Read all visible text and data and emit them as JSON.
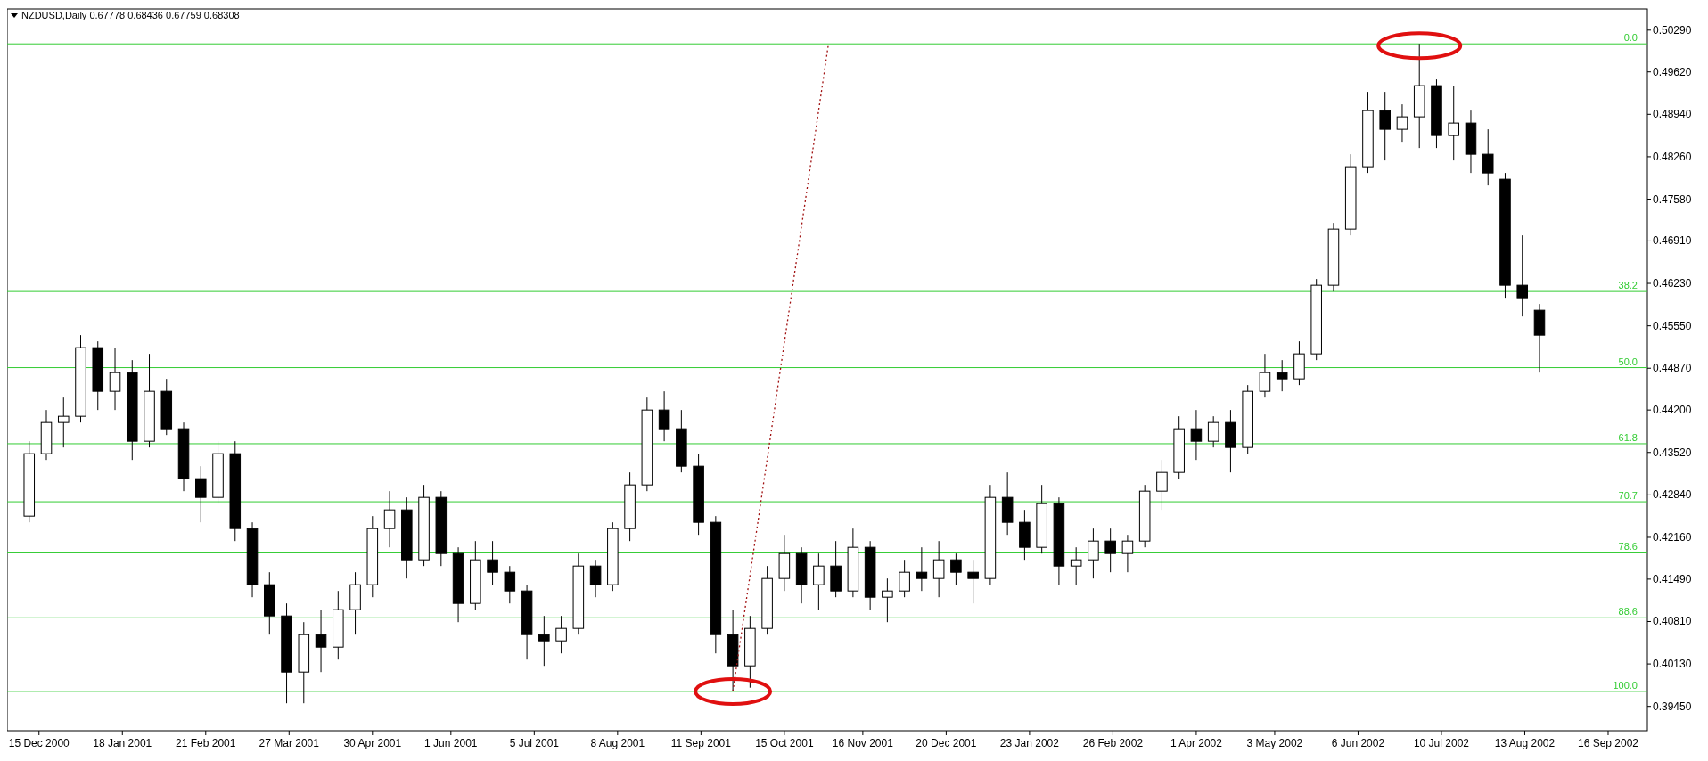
{
  "chart_data": {
    "type": "candlestick",
    "title": "NZDUSD,Daily 0.67778 0.68436 0.67759 0.68308",
    "x": [
      "2000-12-11",
      "2000-12-18",
      "2000-12-25",
      "2001-01-01",
      "2001-01-08",
      "2001-01-15",
      "2001-01-22",
      "2001-01-29",
      "2001-02-05",
      "2001-02-12",
      "2001-02-19",
      "2001-02-26",
      "2001-03-05",
      "2001-03-12",
      "2001-03-19",
      "2001-03-26",
      "2001-04-02",
      "2001-04-09",
      "2001-04-16",
      "2001-04-23",
      "2001-04-30",
      "2001-05-07",
      "2001-05-14",
      "2001-05-21",
      "2001-05-28",
      "2001-06-04",
      "2001-06-11",
      "2001-06-18",
      "2001-06-25",
      "2001-07-02",
      "2001-07-09",
      "2001-07-16",
      "2001-07-23",
      "2001-07-30",
      "2001-08-06",
      "2001-08-13",
      "2001-08-20",
      "2001-08-27",
      "2001-09-03",
      "2001-09-10",
      "2001-09-17",
      "2001-09-24",
      "2001-10-01",
      "2001-10-08",
      "2001-10-15",
      "2001-10-22",
      "2001-10-29",
      "2001-11-05",
      "2001-11-12",
      "2001-11-19",
      "2001-11-26",
      "2001-12-03",
      "2001-12-10",
      "2001-12-17",
      "2001-12-24",
      "2001-12-31",
      "2002-01-07",
      "2002-01-14",
      "2002-01-21",
      "2002-01-28",
      "2002-02-04",
      "2002-02-11",
      "2002-02-18",
      "2002-02-25",
      "2002-03-04",
      "2002-03-11",
      "2002-03-18",
      "2002-03-25",
      "2002-04-01",
      "2002-04-08",
      "2002-04-15",
      "2002-04-22",
      "2002-04-29",
      "2002-05-06",
      "2002-05-13",
      "2002-05-20",
      "2002-05-27",
      "2002-06-03",
      "2002-06-10",
      "2002-06-17",
      "2002-06-24",
      "2002-07-01",
      "2002-07-08",
      "2002-07-15",
      "2002-07-22",
      "2002-07-29",
      "2002-08-05",
      "2002-08-12",
      "2002-08-19"
    ],
    "ohlc": [
      [
        0.425,
        0.437,
        0.424,
        0.435
      ],
      [
        0.435,
        0.442,
        0.434,
        0.44
      ],
      [
        0.44,
        0.444,
        0.436,
        0.441
      ],
      [
        0.441,
        0.454,
        0.44,
        0.452
      ],
      [
        0.452,
        0.453,
        0.442,
        0.445
      ],
      [
        0.445,
        0.452,
        0.442,
        0.448
      ],
      [
        0.448,
        0.45,
        0.434,
        0.437
      ],
      [
        0.437,
        0.451,
        0.436,
        0.445
      ],
      [
        0.445,
        0.447,
        0.438,
        0.439
      ],
      [
        0.439,
        0.44,
        0.429,
        0.431
      ],
      [
        0.431,
        0.433,
        0.424,
        0.428
      ],
      [
        0.428,
        0.437,
        0.427,
        0.435
      ],
      [
        0.435,
        0.437,
        0.421,
        0.423
      ],
      [
        0.423,
        0.424,
        0.412,
        0.414
      ],
      [
        0.414,
        0.416,
        0.406,
        0.409
      ],
      [
        0.409,
        0.411,
        0.395,
        0.4
      ],
      [
        0.4,
        0.408,
        0.395,
        0.406
      ],
      [
        0.406,
        0.41,
        0.4,
        0.404
      ],
      [
        0.404,
        0.413,
        0.402,
        0.41
      ],
      [
        0.41,
        0.416,
        0.406,
        0.414
      ],
      [
        0.414,
        0.425,
        0.412,
        0.423
      ],
      [
        0.423,
        0.429,
        0.42,
        0.426
      ],
      [
        0.426,
        0.428,
        0.415,
        0.418
      ],
      [
        0.418,
        0.43,
        0.417,
        0.428
      ],
      [
        0.428,
        0.429,
        0.417,
        0.419
      ],
      [
        0.419,
        0.42,
        0.408,
        0.411
      ],
      [
        0.411,
        0.421,
        0.41,
        0.418
      ],
      [
        0.418,
        0.421,
        0.414,
        0.416
      ],
      [
        0.416,
        0.417,
        0.411,
        0.413
      ],
      [
        0.413,
        0.414,
        0.402,
        0.406
      ],
      [
        0.406,
        0.409,
        0.401,
        0.405
      ],
      [
        0.405,
        0.409,
        0.403,
        0.407
      ],
      [
        0.407,
        0.419,
        0.406,
        0.417
      ],
      [
        0.417,
        0.418,
        0.412,
        0.414
      ],
      [
        0.414,
        0.424,
        0.413,
        0.423
      ],
      [
        0.423,
        0.432,
        0.421,
        0.43
      ],
      [
        0.43,
        0.444,
        0.429,
        0.442
      ],
      [
        0.442,
        0.445,
        0.437,
        0.439
      ],
      [
        0.439,
        0.442,
        0.432,
        0.433
      ],
      [
        0.433,
        0.435,
        0.422,
        0.424
      ],
      [
        0.424,
        0.425,
        0.403,
        0.406
      ],
      [
        0.406,
        0.41,
        0.3969,
        0.401
      ],
      [
        0.401,
        0.409,
        0.3975,
        0.407
      ],
      [
        0.407,
        0.417,
        0.406,
        0.415
      ],
      [
        0.415,
        0.422,
        0.413,
        0.419
      ],
      [
        0.419,
        0.42,
        0.411,
        0.414
      ],
      [
        0.414,
        0.419,
        0.41,
        0.417
      ],
      [
        0.417,
        0.421,
        0.412,
        0.413
      ],
      [
        0.413,
        0.423,
        0.412,
        0.42
      ],
      [
        0.42,
        0.421,
        0.41,
        0.412
      ],
      [
        0.412,
        0.415,
        0.408,
        0.413
      ],
      [
        0.413,
        0.418,
        0.412,
        0.416
      ],
      [
        0.416,
        0.42,
        0.413,
        0.415
      ],
      [
        0.415,
        0.421,
        0.412,
        0.418
      ],
      [
        0.418,
        0.419,
        0.414,
        0.416
      ],
      [
        0.416,
        0.418,
        0.411,
        0.415
      ],
      [
        0.415,
        0.43,
        0.414,
        0.428
      ],
      [
        0.428,
        0.432,
        0.422,
        0.424
      ],
      [
        0.424,
        0.426,
        0.418,
        0.42
      ],
      [
        0.42,
        0.43,
        0.419,
        0.427
      ],
      [
        0.427,
        0.428,
        0.414,
        0.417
      ],
      [
        0.417,
        0.42,
        0.414,
        0.418
      ],
      [
        0.418,
        0.423,
        0.415,
        0.421
      ],
      [
        0.421,
        0.423,
        0.416,
        0.419
      ],
      [
        0.419,
        0.422,
        0.416,
        0.421
      ],
      [
        0.421,
        0.43,
        0.42,
        0.429
      ],
      [
        0.429,
        0.434,
        0.426,
        0.432
      ],
      [
        0.432,
        0.441,
        0.431,
        0.439
      ],
      [
        0.439,
        0.442,
        0.434,
        0.437
      ],
      [
        0.437,
        0.441,
        0.436,
        0.44
      ],
      [
        0.44,
        0.442,
        0.432,
        0.436
      ],
      [
        0.436,
        0.446,
        0.435,
        0.445
      ],
      [
        0.445,
        0.451,
        0.444,
        0.448
      ],
      [
        0.448,
        0.45,
        0.445,
        0.447
      ],
      [
        0.447,
        0.453,
        0.446,
        0.451
      ],
      [
        0.451,
        0.463,
        0.45,
        0.462
      ],
      [
        0.462,
        0.472,
        0.461,
        0.471
      ],
      [
        0.471,
        0.483,
        0.47,
        0.481
      ],
      [
        0.481,
        0.493,
        0.48,
        0.49
      ],
      [
        0.49,
        0.493,
        0.482,
        0.487
      ],
      [
        0.487,
        0.491,
        0.485,
        0.489
      ],
      [
        0.489,
        0.5007,
        0.484,
        0.494
      ],
      [
        0.494,
        0.495,
        0.484,
        0.486
      ],
      [
        0.486,
        0.494,
        0.482,
        0.488
      ],
      [
        0.488,
        0.49,
        0.48,
        0.483
      ],
      [
        0.483,
        0.487,
        0.478,
        0.48
      ],
      [
        0.479,
        0.48,
        0.46,
        0.462
      ],
      [
        0.462,
        0.47,
        0.457,
        0.46
      ],
      [
        0.458,
        0.459,
        0.448,
        0.454
      ]
    ],
    "series": [
      {
        "type": "line",
        "x": [
          "2001-09-24",
          "2001-11-02"
        ],
        "values": [
          0.3969,
          0.5007
        ],
        "color": "#a01010",
        "line_style": "dotted"
      }
    ],
    "xlim": [
      "2000-12-02",
      "2002-10-02"
    ],
    "xticks": [
      {
        "value": "2000-12-15",
        "label": "15 Dec 2000"
      },
      {
        "value": "2001-01-18",
        "label": "18 Jan 2001"
      },
      {
        "value": "2001-02-21",
        "label": "21 Feb 2001"
      },
      {
        "value": "2001-03-27",
        "label": "27 Mar 2001"
      },
      {
        "value": "2001-04-30",
        "label": "30 Apr 2001"
      },
      {
        "value": "2001-06-01",
        "label": "1 Jun 2001"
      },
      {
        "value": "2001-07-05",
        "label": "5 Jul 2001"
      },
      {
        "value": "2001-08-08",
        "label": "8 Aug 2001"
      },
      {
        "value": "2001-09-11",
        "label": "11 Sep 2001"
      },
      {
        "value": "2001-10-15",
        "label": "15 Oct 2001"
      },
      {
        "value": "2001-11-16",
        "label": "16 Nov 2001"
      },
      {
        "value": "2001-12-20",
        "label": "20 Dec 2001"
      },
      {
        "value": "2002-01-23",
        "label": "23 Jan 2002"
      },
      {
        "value": "2002-02-26",
        "label": "26 Feb 2002"
      },
      {
        "value": "2002-04-01",
        "label": "1 Apr 2002"
      },
      {
        "value": "2002-05-03",
        "label": "3 May 2002"
      },
      {
        "value": "2002-06-06",
        "label": "6 Jun 2002"
      },
      {
        "value": "2002-07-10",
        "label": "10 Jul 2002"
      },
      {
        "value": "2002-08-13",
        "label": "13 Aug 2002"
      },
      {
        "value": "2002-09-16",
        "label": "16 Sep 2002"
      }
    ],
    "ylim": [
      0.3906,
      0.5063
    ],
    "yticks": [
      {
        "value": 0.3945,
        "label": "0.39450"
      },
      {
        "value": 0.4013,
        "label": "0.40130"
      },
      {
        "value": 0.4081,
        "label": "0.40810"
      },
      {
        "value": 0.4149,
        "label": "0.41490"
      },
      {
        "value": 0.4216,
        "label": "0.42160"
      },
      {
        "value": 0.4284,
        "label": "0.42840"
      },
      {
        "value": 0.4352,
        "label": "0.43520"
      },
      {
        "value": 0.442,
        "label": "0.44200"
      },
      {
        "value": 0.4487,
        "label": "0.44870"
      },
      {
        "value": 0.4555,
        "label": "0.45550"
      },
      {
        "value": 0.4623,
        "label": "0.46230"
      },
      {
        "value": 0.4691,
        "label": "0.46910"
      },
      {
        "value": 0.4758,
        "label": "0.47580"
      },
      {
        "value": 0.4826,
        "label": "0.48260"
      },
      {
        "value": 0.4894,
        "label": "0.48940"
      },
      {
        "value": 0.4962,
        "label": "0.49620"
      },
      {
        "value": 0.5029,
        "label": "0.50290"
      }
    ],
    "ref_lines": [
      {
        "axis": "y",
        "value": 0.5007,
        "color": "#33cc33"
      },
      {
        "axis": "y",
        "value": 0.461,
        "color": "#33cc33"
      },
      {
        "axis": "y",
        "value": 0.4488,
        "color": "#33cc33"
      },
      {
        "axis": "y",
        "value": 0.4366,
        "color": "#33cc33"
      },
      {
        "axis": "y",
        "value": 0.4273,
        "color": "#33cc33"
      },
      {
        "axis": "y",
        "value": 0.4191,
        "color": "#33cc33"
      },
      {
        "axis": "y",
        "value": 0.4087,
        "color": "#33cc33"
      },
      {
        "axis": "y",
        "value": 0.3969,
        "color": "#33cc33"
      }
    ],
    "annotations": [
      {
        "text": "0.0",
        "x": "2002-09-28",
        "y": 0.5007
      },
      {
        "text": "38.2",
        "x": "2002-09-28",
        "y": 0.461
      },
      {
        "text": "50.0",
        "x": "2002-09-28",
        "y": 0.4488
      },
      {
        "text": "61.8",
        "x": "2002-09-28",
        "y": 0.4366
      },
      {
        "text": "70.7",
        "x": "2002-09-28",
        "y": 0.4273
      },
      {
        "text": "78.6",
        "x": "2002-09-28",
        "y": 0.4191
      },
      {
        "text": "88.6",
        "x": "2002-09-28",
        "y": 0.4087
      },
      {
        "text": "100.0",
        "x": "2002-09-28",
        "y": 0.3969
      }
    ]
  }
}
